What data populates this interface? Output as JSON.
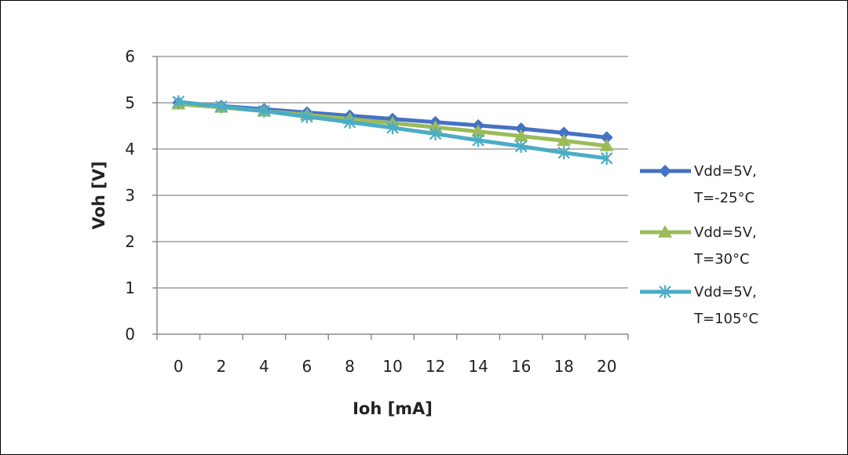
{
  "chart_data": {
    "type": "line",
    "title": "",
    "xlabel": "Ioh [mA]",
    "ylabel": "Voh [V]",
    "x": [
      0,
      2,
      4,
      6,
      8,
      10,
      12,
      14,
      16,
      18,
      20
    ],
    "xticks": [
      "0",
      "2",
      "4",
      "6",
      "8",
      "10",
      "12",
      "14",
      "16",
      "18",
      "20"
    ],
    "yticks": [
      "0",
      "1",
      "2",
      "3",
      "4",
      "5",
      "6"
    ],
    "ylim": [
      0,
      6
    ],
    "grid": "horizontal",
    "legend_position": "right",
    "series": [
      {
        "name_lines": [
          "Vdd=5V,",
          "T=-25°C"
        ],
        "color": "#4472C4",
        "marker": "diamond",
        "values": [
          5.0,
          4.93,
          4.86,
          4.79,
          4.72,
          4.65,
          4.58,
          4.51,
          4.44,
          4.35,
          4.25
        ]
      },
      {
        "name_lines": [
          "Vdd=5V,",
          "T=30°C"
        ],
        "color": "#9BBB59",
        "marker": "triangle",
        "values": [
          4.97,
          4.9,
          4.82,
          4.74,
          4.65,
          4.56,
          4.47,
          4.38,
          4.28,
          4.18,
          4.07
        ]
      },
      {
        "name_lines": [
          "Vdd=5V,",
          "T=105°C"
        ],
        "color": "#4BACC6",
        "marker": "star",
        "values": [
          5.02,
          4.92,
          4.82,
          4.7,
          4.58,
          4.46,
          4.33,
          4.19,
          4.06,
          3.92,
          3.8
        ]
      }
    ]
  }
}
